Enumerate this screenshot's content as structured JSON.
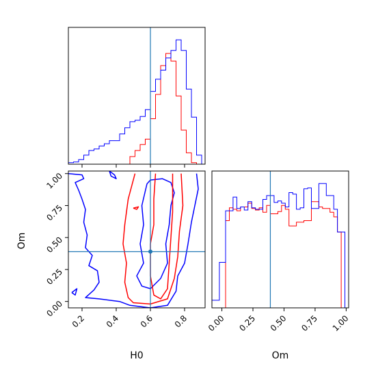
{
  "chart_data": {
    "type": "corner",
    "colors": {
      "series_a": "#0000ff",
      "series_b": "#ff0000",
      "truth": "#1f77b4"
    },
    "series": [
      {
        "name": "",
        "color": "#0000ff"
      },
      {
        "name": "",
        "color": "#ff0000"
      }
    ],
    "truth": {
      "H0": 0.6,
      "Om": 0.39
    },
    "panels": [
      {
        "id": "hist-H0",
        "type": "histogram",
        "xlim": [
          0.12,
          0.92
        ],
        "xlabel": "",
        "ticks_shown": false,
        "bins": [
          0.12,
          0.15,
          0.18,
          0.21,
          0.24,
          0.27,
          0.3,
          0.33,
          0.36,
          0.39,
          0.42,
          0.45,
          0.48,
          0.51,
          0.54,
          0.57,
          0.6,
          0.63,
          0.66,
          0.69,
          0.72,
          0.75,
          0.78,
          0.81,
          0.84,
          0.87,
          0.9,
          0.92
        ],
        "series_values": [
          [
            2,
            3,
            6,
            12,
            18,
            20,
            24,
            27,
            31,
            31,
            40,
            48,
            56,
            58,
            63,
            72,
            96,
            112,
            124,
            140,
            150,
            164,
            150,
            99,
            62,
            12,
            0
          ],
          [
            0,
            0,
            0,
            0,
            0,
            0,
            0,
            0,
            0,
            0,
            0,
            0,
            10,
            18,
            26,
            33,
            60,
            92,
            130,
            146,
            136,
            90,
            45,
            15,
            2,
            0,
            0
          ]
        ]
      },
      {
        "id": "contour-H0-Om",
        "type": "contour",
        "xlim": [
          0.12,
          0.92
        ],
        "ylim": [
          -0.05,
          1.02
        ],
        "xlabel": "H0",
        "ylabel": "Om",
        "xticks": [
          "0.2",
          "0.4",
          "0.6",
          "0.8"
        ],
        "yticks": [
          "0.00",
          "0.25",
          "0.50",
          "0.75",
          "1.00"
        ],
        "xtick_values": [
          0.2,
          0.4,
          0.6,
          0.8
        ],
        "ytick_values": [
          0.0,
          0.25,
          0.5,
          0.75,
          1.0
        ],
        "contours": [
          {
            "series": 0,
            "level": "outer",
            "points": [
              [
                0.12,
                1.0
              ],
              [
                0.2,
                0.99
              ],
              [
                0.21,
                0.96
              ],
              [
                0.16,
                0.93
              ],
              [
                0.18,
                0.87
              ],
              [
                0.2,
                0.8
              ],
              [
                0.22,
                0.72
              ],
              [
                0.21,
                0.62
              ],
              [
                0.23,
                0.52
              ],
              [
                0.22,
                0.42
              ],
              [
                0.26,
                0.36
              ],
              [
                0.24,
                0.28
              ],
              [
                0.29,
                0.24
              ],
              [
                0.3,
                0.15
              ],
              [
                0.27,
                0.09
              ],
              [
                0.22,
                0.03
              ],
              [
                0.3,
                0.02
              ],
              [
                0.42,
                0.0
              ],
              [
                0.48,
                -0.03
              ],
              [
                0.6,
                -0.05
              ],
              [
                0.7,
                -0.03
              ],
              [
                0.75,
                0.08
              ],
              [
                0.76,
                0.2
              ],
              [
                0.8,
                0.3
              ],
              [
                0.82,
                0.45
              ],
              [
                0.84,
                0.62
              ],
              [
                0.86,
                0.75
              ],
              [
                0.88,
                0.88
              ],
              [
                0.87,
                1.0
              ]
            ]
          },
          {
            "series": 0,
            "level": "inner",
            "points": [
              [
                0.36,
                1.02
              ],
              [
                0.37,
                0.98
              ],
              [
                0.4,
                0.96
              ],
              [
                0.39,
                0.99
              ],
              [
                0.36,
                1.02
              ]
            ]
          },
          {
            "series": 0,
            "level": "inner",
            "points": [
              [
                0.58,
                0.92
              ],
              [
                0.6,
                0.95
              ],
              [
                0.67,
                0.96
              ],
              [
                0.72,
                0.93
              ],
              [
                0.74,
                0.85
              ],
              [
                0.72,
                0.75
              ],
              [
                0.71,
                0.6
              ],
              [
                0.69,
                0.45
              ],
              [
                0.7,
                0.3
              ],
              [
                0.66,
                0.18
              ],
              [
                0.6,
                0.1
              ],
              [
                0.55,
                0.12
              ],
              [
                0.52,
                0.2
              ],
              [
                0.56,
                0.3
              ],
              [
                0.54,
                0.45
              ],
              [
                0.56,
                0.6
              ],
              [
                0.55,
                0.75
              ],
              [
                0.58,
                0.92
              ]
            ]
          },
          {
            "series": 0,
            "level": "inner",
            "points": [
              [
                0.14,
                0.07
              ],
              [
                0.17,
                0.1
              ],
              [
                0.16,
                0.05
              ],
              [
                0.14,
                0.07
              ]
            ]
          },
          {
            "series": 1,
            "level": "outer",
            "points": [
              [
                0.51,
                1.0
              ],
              [
                0.47,
                0.8
              ],
              [
                0.45,
                0.6
              ],
              [
                0.44,
                0.45
              ],
              [
                0.46,
                0.3
              ],
              [
                0.45,
                0.15
              ],
              [
                0.47,
                0.03
              ],
              [
                0.5,
                -0.01
              ],
              [
                0.6,
                -0.02
              ],
              [
                0.7,
                0.02
              ],
              [
                0.74,
                0.18
              ],
              [
                0.76,
                0.35
              ],
              [
                0.77,
                0.55
              ],
              [
                0.79,
                0.75
              ],
              [
                0.78,
                1.0
              ]
            ]
          },
          {
            "series": 1,
            "level": "inner",
            "points": [
              [
                0.63,
                1.0
              ],
              [
                0.62,
                0.8
              ],
              [
                0.62,
                0.6
              ],
              [
                0.6,
                0.45
              ],
              [
                0.6,
                0.2
              ],
              [
                0.62,
                0.05
              ],
              [
                0.66,
                0.02
              ],
              [
                0.7,
                0.1
              ],
              [
                0.71,
                0.3
              ],
              [
                0.72,
                0.5
              ],
              [
                0.73,
                0.7
              ],
              [
                0.73,
                1.0
              ]
            ]
          },
          {
            "series": 1,
            "level": "inner",
            "points": [
              [
                0.5,
                0.73
              ],
              [
                0.53,
                0.74
              ],
              [
                0.52,
                0.72
              ],
              [
                0.5,
                0.73
              ]
            ]
          }
        ]
      },
      {
        "id": "hist-Om",
        "type": "histogram",
        "xlim": [
          -0.08,
          1.02
        ],
        "xlabel": "Om",
        "xticks": [
          "0.00",
          "0.25",
          "0.50",
          "0.75",
          "1.00"
        ],
        "xtick_values": [
          0.0,
          0.25,
          0.5,
          0.75,
          1.0
        ],
        "bins": [
          -0.08,
          -0.02,
          0.0,
          0.03,
          0.06,
          0.09,
          0.12,
          0.15,
          0.18,
          0.21,
          0.24,
          0.27,
          0.3,
          0.33,
          0.36,
          0.39,
          0.42,
          0.45,
          0.48,
          0.51,
          0.54,
          0.57,
          0.6,
          0.63,
          0.66,
          0.69,
          0.72,
          0.75,
          0.78,
          0.81,
          0.84,
          0.87,
          0.9,
          0.93,
          0.96,
          0.99,
          1.0
        ],
        "series_values": [
          [
            10,
            60,
            60,
            128,
            128,
            146,
            131,
            133,
            129,
            140,
            132,
            130,
            130,
            143,
            148,
            148,
            139,
            141,
            138,
            133,
            152,
            150,
            130,
            132,
            157,
            158,
            131,
            131,
            164,
            164,
            148,
            148,
            130,
            100,
            100,
            0
          ],
          [
            0,
            0,
            0,
            115,
            132,
            130,
            128,
            133,
            133,
            138,
            131,
            129,
            132,
            126,
            135,
            124,
            124,
            127,
            135,
            130,
            108,
            108,
            113,
            113,
            115,
            115,
            140,
            140,
            133,
            131,
            131,
            126,
            120,
            100,
            0,
            0
          ]
        ]
      }
    ]
  }
}
